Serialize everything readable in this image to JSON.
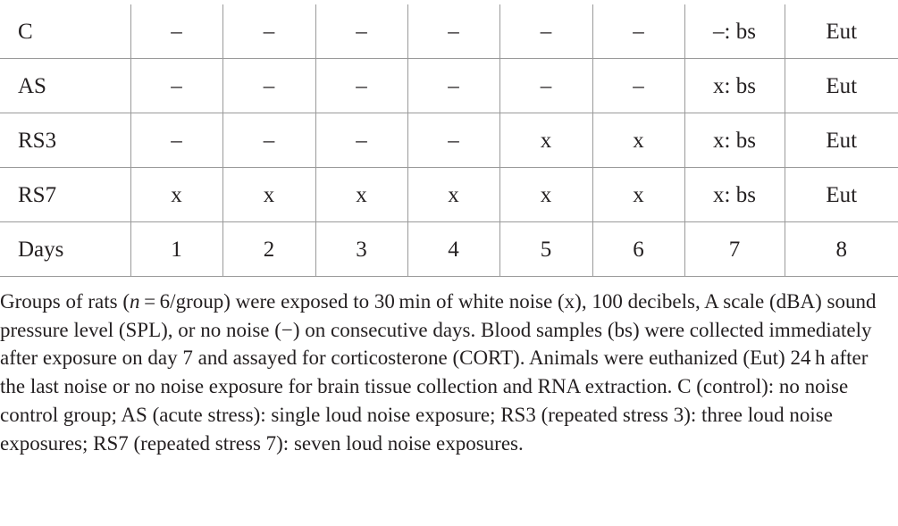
{
  "table": {
    "rows": [
      {
        "label": "C",
        "cells": [
          "–",
          "–",
          "–",
          "–",
          "–",
          "–",
          "–: bs",
          "Eut"
        ]
      },
      {
        "label": "AS",
        "cells": [
          "–",
          "–",
          "–",
          "–",
          "–",
          "–",
          "x: bs",
          "Eut"
        ]
      },
      {
        "label": "RS3",
        "cells": [
          "–",
          "–",
          "–",
          "–",
          "x",
          "x",
          "x: bs",
          "Eut"
        ]
      },
      {
        "label": "RS7",
        "cells": [
          "x",
          "x",
          "x",
          "x",
          "x",
          "x",
          "x: bs",
          "Eut"
        ]
      },
      {
        "label": "Days",
        "cells": [
          "1",
          "2",
          "3",
          "4",
          "5",
          "6",
          "7",
          "8"
        ]
      }
    ]
  },
  "caption": {
    "part1": "Groups of rats (",
    "n_symbol": "n",
    "part2": " = 6/group) were exposed to 30 min of white noise (x), 100 decibels, A scale (dBA) sound pressure level (SPL), or no noise (−) on consecutive days. Blood samples (bs) were collected immediately after exposure on day 7 and assayed for corticosterone (CORT). Animals were euthanized (Eut) 24 h after the last noise or no noise exposure for brain tissue collection and RNA extraction. C (control): no noise control group; AS (acute stress): single loud noise exposure; RS3 (repeated stress 3): three loud noise exposures; RS7 (repeated stress 7): seven loud noise exposures."
  }
}
